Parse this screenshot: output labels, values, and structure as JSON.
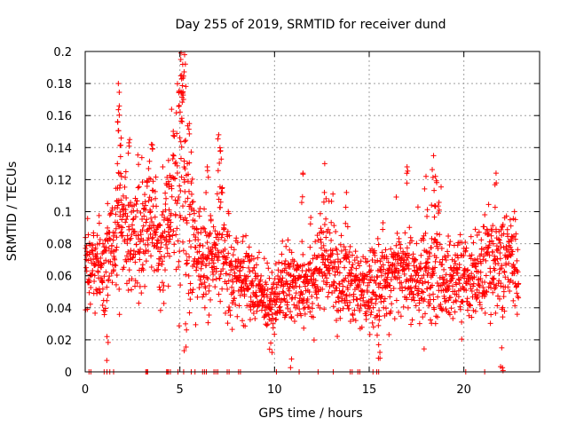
{
  "chart_data": {
    "type": "scatter",
    "title": "Day 255 of 2019, SRMTID for receiver dund",
    "xlabel": "GPS time / hours",
    "ylabel": "SRMTID / TECUs",
    "xlim": [
      0,
      24
    ],
    "ylim": [
      0,
      0.2
    ],
    "x_ticks": [
      0,
      5,
      10,
      15,
      20
    ],
    "x_tick_labels": [
      "0",
      "5",
      "10",
      "15",
      "20"
    ],
    "y_ticks": [
      0,
      0.02,
      0.04,
      0.06,
      0.08,
      0.1,
      0.12,
      0.14,
      0.16,
      0.18,
      0.2
    ],
    "y_tick_labels": [
      "0",
      "0.02",
      "0.04",
      "0.06",
      "0.08",
      "0.1",
      "0.12",
      "0.14",
      "0.16",
      "0.18",
      "0.2"
    ],
    "grid": true,
    "marker": "+",
    "series": [
      {
        "name": "SRMTID",
        "color": "#ff0000",
        "profile": [
          [
            0.0,
            0.062,
            0.014
          ],
          [
            0.5,
            0.07,
            0.015
          ],
          [
            1.0,
            0.065,
            0.014
          ],
          [
            1.5,
            0.075,
            0.016
          ],
          [
            1.8,
            0.11,
            0.025
          ],
          [
            2.3,
            0.078,
            0.016
          ],
          [
            3.0,
            0.09,
            0.02
          ],
          [
            3.5,
            0.1,
            0.02
          ],
          [
            4.0,
            0.075,
            0.016
          ],
          [
            4.5,
            0.095,
            0.02
          ],
          [
            5.0,
            0.13,
            0.035
          ],
          [
            5.5,
            0.09,
            0.025
          ],
          [
            6.0,
            0.07,
            0.016
          ],
          [
            6.7,
            0.065,
            0.015
          ],
          [
            7.2,
            0.08,
            0.02
          ],
          [
            7.8,
            0.06,
            0.013
          ],
          [
            8.5,
            0.058,
            0.012
          ],
          [
            9.5,
            0.045,
            0.01
          ],
          [
            10.2,
            0.05,
            0.011
          ],
          [
            11.0,
            0.055,
            0.013
          ],
          [
            12.0,
            0.06,
            0.015
          ],
          [
            12.5,
            0.065,
            0.016
          ],
          [
            13.0,
            0.07,
            0.015
          ],
          [
            13.5,
            0.055,
            0.013
          ],
          [
            14.0,
            0.058,
            0.014
          ],
          [
            14.5,
            0.048,
            0.011
          ],
          [
            15.0,
            0.05,
            0.012
          ],
          [
            16.0,
            0.06,
            0.013
          ],
          [
            16.8,
            0.065,
            0.015
          ],
          [
            17.5,
            0.055,
            0.013
          ],
          [
            18.2,
            0.06,
            0.015
          ],
          [
            18.5,
            0.075,
            0.02
          ],
          [
            19.0,
            0.055,
            0.013
          ],
          [
            19.6,
            0.06,
            0.013
          ],
          [
            20.5,
            0.058,
            0.012
          ],
          [
            21.0,
            0.065,
            0.015
          ],
          [
            21.5,
            0.07,
            0.015
          ],
          [
            22.0,
            0.068,
            0.015
          ],
          [
            22.5,
            0.072,
            0.016
          ],
          [
            22.9,
            0.065,
            0.015
          ]
        ],
        "peaks": [
          [
            1.75,
            0.18
          ],
          [
            1.8,
            0.166
          ],
          [
            1.9,
            0.146
          ],
          [
            1.7,
            0.13
          ],
          [
            2.35,
            0.145
          ],
          [
            3.5,
            0.142
          ],
          [
            4.4,
            0.132
          ],
          [
            4.95,
            0.175
          ],
          [
            5.05,
            0.195
          ],
          [
            5.15,
            0.192
          ],
          [
            5.25,
            0.198
          ],
          [
            5.1,
            0.185
          ],
          [
            5.5,
            0.155
          ],
          [
            6.45,
            0.128
          ],
          [
            7.05,
            0.148
          ],
          [
            7.15,
            0.138
          ],
          [
            11.5,
            0.124
          ],
          [
            12.65,
            0.13
          ],
          [
            13.8,
            0.112
          ],
          [
            17.0,
            0.128
          ],
          [
            18.0,
            0.122
          ],
          [
            18.4,
            0.135
          ],
          [
            18.5,
            0.122
          ],
          [
            21.7,
            0.124
          ],
          [
            10.9,
            0.008
          ],
          [
            1.15,
            0.022
          ],
          [
            15.5,
            0.017
          ],
          [
            22.0,
            0.015
          ],
          [
            9.8,
            0.018
          ],
          [
            5.3,
            0.03
          ]
        ],
        "zero_x": [
          0.2,
          0.3,
          1.0,
          1.15,
          1.3,
          1.5,
          3.2,
          3.25,
          3.3,
          4.3,
          4.35,
          4.4,
          4.5,
          4.9,
          5.2,
          5.6,
          5.8,
          6.2,
          6.3,
          6.4,
          6.8,
          6.9,
          7.0,
          7.5,
          7.6,
          8.1,
          8.2,
          10.1,
          11.3,
          12.3,
          13.1,
          14.0,
          14.1,
          14.4,
          14.5,
          15.2,
          15.4,
          15.5,
          20.1,
          21.1
        ]
      }
    ]
  }
}
